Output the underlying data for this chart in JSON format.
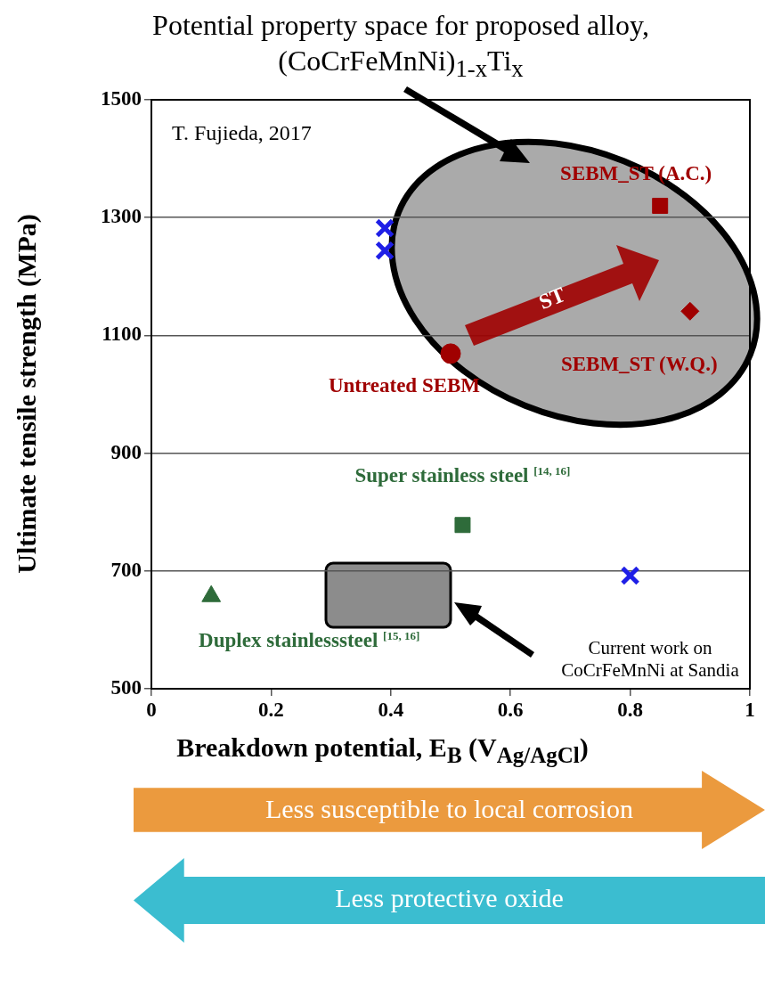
{
  "chart_data": {
    "type": "scatter",
    "title": "Potential property space for proposed alloy, (CoCrFeMnNi)$_{1-x}$Ti$_{x}$",
    "xlabel": "Breakdown potential, E$_{B}$ (V$_{Ag/AgCl}$)",
    "ylabel": "Ultimate tensile strength (MPa)",
    "xlim": [
      0,
      1
    ],
    "xticks": [
      0,
      0.2,
      0.4,
      0.6,
      0.8,
      1
    ],
    "ylim": [
      500,
      1500
    ],
    "yticks": [
      500,
      700,
      900,
      1100,
      1300,
      1500
    ],
    "grid": "y",
    "legend": false,
    "series": [
      {
        "color": "#1f1fe6",
        "marker": "cross",
        "x": [
          0.39,
          0.39
        ],
        "values": [
          1282,
          1244
        ]
      },
      {
        "name": "Untreated SEBM",
        "color": "#a00000",
        "marker": "circle",
        "x": [
          0.5
        ],
        "values": [
          1069
        ]
      },
      {
        "name": "SEBM_ST (A.C.)",
        "color": "#a00000",
        "marker": "square",
        "x": [
          0.85
        ],
        "values": [
          1320
        ]
      },
      {
        "name": "SEBM_ST (W.Q.)",
        "color": "#a00000",
        "marker": "diamond",
        "x": [
          0.9
        ],
        "values": [
          1141
        ]
      },
      {
        "name": "Super stainless steel $^{[14, 16]}$",
        "color": "#2e6b3a",
        "marker": "square",
        "x": [
          0.52
        ],
        "values": [
          778
        ]
      },
      {
        "name": "Duplex stainlesssteel $^{[15, 16]}$",
        "color": "#2e6b3a",
        "marker": "triangle",
        "x": [
          0.1
        ],
        "values": [
          657
        ]
      },
      {
        "color": "#1f1fe6",
        "marker": "cross",
        "x": [
          0.8
        ],
        "values": [
          692
        ]
      }
    ],
    "annotations": [
      "T. Fujieda, 2017",
      "ST",
      "Current work on CoCrFeMnNi at Sandia",
      "Less susceptible to local corrosion",
      "Less protective oxide"
    ]
  }
}
